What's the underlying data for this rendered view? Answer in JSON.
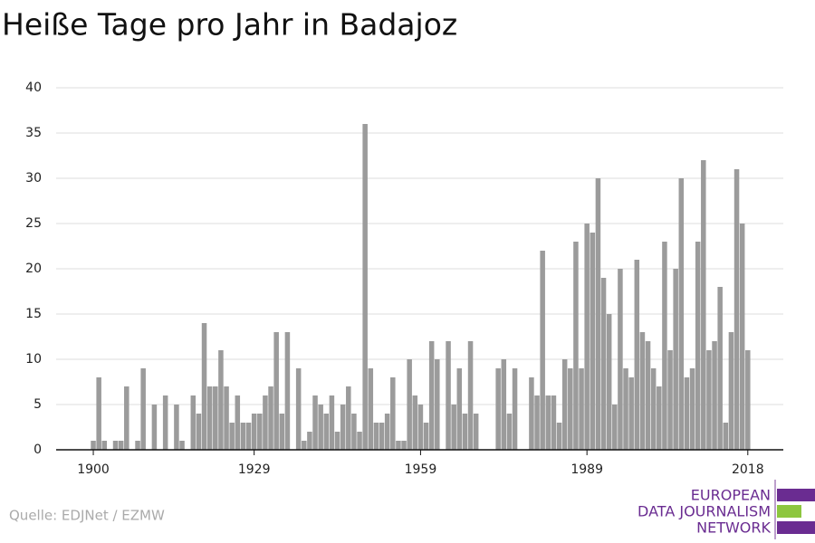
{
  "chart_data": {
    "type": "bar",
    "title": "Heiße Tage pro Jahr in Badajoz",
    "source": "Quelle: EDJNet / EZMW",
    "logo": [
      "EUROPEAN",
      "DATA JOURNALISM",
      "NETWORK"
    ],
    "color": "#9b9b9b",
    "x": [
      1900,
      1901,
      1902,
      1903,
      1904,
      1905,
      1906,
      1907,
      1908,
      1909,
      1910,
      1911,
      1912,
      1913,
      1914,
      1915,
      1916,
      1917,
      1918,
      1919,
      1920,
      1921,
      1922,
      1923,
      1924,
      1925,
      1926,
      1927,
      1928,
      1929,
      1930,
      1931,
      1932,
      1933,
      1934,
      1935,
      1936,
      1937,
      1938,
      1939,
      1940,
      1941,
      1942,
      1943,
      1944,
      1945,
      1946,
      1947,
      1948,
      1949,
      1950,
      1951,
      1952,
      1953,
      1954,
      1955,
      1956,
      1957,
      1958,
      1959,
      1960,
      1961,
      1962,
      1963,
      1964,
      1965,
      1966,
      1967,
      1968,
      1969,
      1970,
      1971,
      1972,
      1973,
      1974,
      1975,
      1976,
      1977,
      1978,
      1979,
      1980,
      1981,
      1982,
      1983,
      1984,
      1985,
      1986,
      1987,
      1988,
      1989,
      1990,
      1991,
      1992,
      1993,
      1994,
      1995,
      1996,
      1997,
      1998,
      1999,
      2000,
      2001,
      2002,
      2003,
      2004,
      2005,
      2006,
      2007,
      2008,
      2009,
      2010,
      2011,
      2012,
      2013,
      2014,
      2015,
      2016,
      2017,
      2018
    ],
    "values": [
      1,
      8,
      1,
      0,
      1,
      1,
      7,
      0,
      1,
      9,
      0,
      5,
      0,
      6,
      0,
      5,
      1,
      0,
      6,
      4,
      14,
      7,
      7,
      11,
      7,
      3,
      6,
      3,
      3,
      4,
      4,
      6,
      7,
      13,
      4,
      13,
      0,
      9,
      1,
      2,
      6,
      5,
      4,
      6,
      2,
      5,
      7,
      4,
      2,
      36,
      9,
      3,
      3,
      4,
      8,
      1,
      1,
      10,
      6,
      5,
      3,
      12,
      10,
      0,
      12,
      5,
      9,
      4,
      12,
      4,
      0,
      0,
      0,
      9,
      10,
      4,
      9,
      0,
      0,
      8,
      6,
      22,
      6,
      6,
      3,
      10,
      9,
      23,
      9,
      25,
      24,
      30,
      19,
      15,
      5,
      20,
      9,
      8,
      21,
      13,
      12,
      9,
      7,
      23,
      11,
      20,
      30,
      8,
      9,
      23,
      32,
      11,
      12,
      18,
      3,
      13,
      31,
      25,
      11
    ],
    "xlim": [
      1893.3,
      2024.4
    ],
    "xticks": [
      1900,
      1929,
      1959,
      1989,
      2018
    ],
    "ylim": [
      0,
      40
    ],
    "yticks": [
      0,
      5,
      10,
      15,
      20,
      25,
      30,
      35,
      40
    ],
    "grid": true
  }
}
